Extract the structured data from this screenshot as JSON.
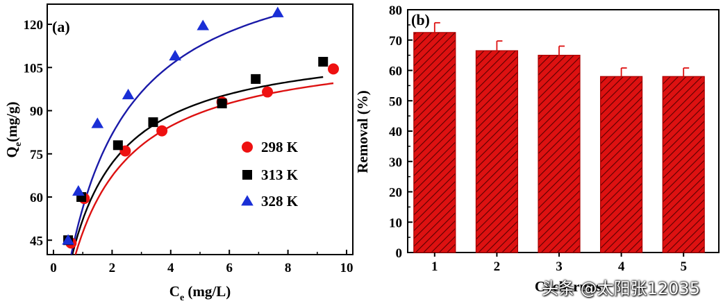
{
  "chart_data": [
    {
      "type": "scatter",
      "panel_label": "(a)",
      "xlabel_main": "C",
      "xlabel_sub": "e",
      "xlabel_rest": " (mg/L)",
      "ylabel_main": "Q",
      "ylabel_sub": "e",
      "ylabel_rest": "(mg/g)",
      "xlim": [
        0,
        10
      ],
      "ylim": [
        40,
        127
      ],
      "xticks": [
        0,
        2,
        4,
        6,
        8,
        10
      ],
      "yticks": [
        45,
        60,
        75,
        90,
        105,
        120
      ],
      "legend_position": "center-right",
      "series": [
        {
          "name": "298 K",
          "marker": "circle",
          "color": "#ee1111",
          "line_color": "#dd1111",
          "points": [
            [
              0.6,
              44
            ],
            [
              1.05,
              59.5
            ],
            [
              2.45,
              76
            ],
            [
              3.7,
              83
            ],
            [
              5.75,
              93
            ],
            [
              7.3,
              96.5
            ],
            [
              9.55,
              104.5
            ]
          ],
          "fit": {
            "qmax": 114,
            "k": 0.72
          }
        },
        {
          "name": "313 K",
          "marker": "square",
          "color": "#000000",
          "line_color": "#000000",
          "points": [
            [
              0.5,
              45
            ],
            [
              0.95,
              60
            ],
            [
              2.2,
              78
            ],
            [
              3.4,
              86
            ],
            [
              5.75,
              92.5
            ],
            [
              6.9,
              101
            ],
            [
              9.2,
              107
            ]
          ],
          "fit": {
            "qmax": 115,
            "k": 0.83
          }
        },
        {
          "name": "328 K",
          "marker": "triangle",
          "color": "#1a2fd6",
          "line_color": "#1a1aa8",
          "points": [
            [
              0.5,
              45
            ],
            [
              0.85,
              62
            ],
            [
              1.5,
              85.5
            ],
            [
              2.55,
              95.5
            ],
            [
              4.15,
              109
            ],
            [
              5.1,
              119.5
            ],
            [
              7.65,
              124
            ]
          ],
          "fit": {
            "qmax": 150,
            "k": 0.6
          }
        }
      ]
    },
    {
      "type": "bar",
      "panel_label": "(b)",
      "categories": [
        "1",
        "2",
        "3",
        "4",
        "5"
      ],
      "values": [
        72.5,
        66.5,
        65,
        58,
        58
      ],
      "errors": [
        3.2,
        3.2,
        3.0,
        2.8,
        2.8
      ],
      "ylabel": "Removal (%)",
      "xlabel": "Cycle runs",
      "ylim": [
        0,
        80
      ],
      "yticks": [
        0,
        10,
        20,
        30,
        40,
        50,
        60,
        70,
        80
      ],
      "color": "#dd1111",
      "hatch_color": "#5a0000"
    }
  ],
  "watermark": "头条 @太阳张12035"
}
